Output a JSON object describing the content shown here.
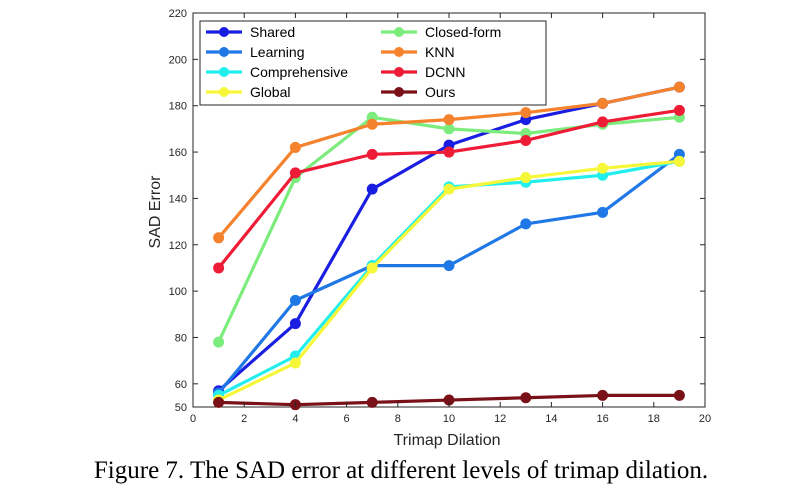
{
  "caption": "Figure 7. The SAD error at different levels of trimap dilation.",
  "chart_data": {
    "type": "line",
    "title": "",
    "xlabel": "Trimap Dilation",
    "ylabel": "SAD Error",
    "xlim": [
      0,
      20
    ],
    "ylim": [
      50,
      220
    ],
    "xticks": [
      0,
      2,
      4,
      6,
      8,
      10,
      12,
      14,
      16,
      18,
      20
    ],
    "yticks": [
      50,
      60,
      80,
      100,
      120,
      140,
      160,
      180,
      200,
      220
    ],
    "x": [
      1,
      4,
      7,
      10,
      13,
      16,
      19
    ],
    "grid": false,
    "legend": "top-left, two columns",
    "series": [
      {
        "name": "Shared",
        "color": "#1a1ee0",
        "values": [
          57,
          86,
          144,
          163,
          174,
          181,
          188
        ]
      },
      {
        "name": "Learning",
        "color": "#1f78e6",
        "values": [
          56,
          96,
          111,
          111,
          129,
          134,
          159
        ]
      },
      {
        "name": "Comprehensive",
        "color": "#22eeee",
        "values": [
          55,
          72,
          111,
          145,
          147,
          150,
          156
        ]
      },
      {
        "name": "Global",
        "color": "#f7f73a",
        "values": [
          53,
          69,
          110,
          144,
          149,
          153,
          156
        ]
      },
      {
        "name": "Closed-form",
        "color": "#7cec7c",
        "values": [
          78,
          149,
          175,
          170,
          168,
          172,
          175
        ]
      },
      {
        "name": "KNN",
        "color": "#f5822c",
        "values": [
          123,
          162,
          172,
          174,
          177,
          181,
          188
        ]
      },
      {
        "name": "DCNN",
        "color": "#ee1c36",
        "values": [
          110,
          151,
          159,
          160,
          165,
          173,
          178
        ]
      },
      {
        "name": "Ours",
        "color": "#7a1018",
        "values": [
          52,
          51,
          52,
          53,
          54,
          55,
          55
        ]
      }
    ]
  }
}
